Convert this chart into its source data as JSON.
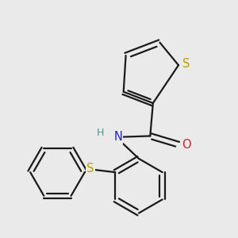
{
  "background_color": "#eaeaea",
  "bond_color": "#1a1a1a",
  "bond_width": 1.6,
  "atom_colors": {
    "S_thiophene": "#b8a000",
    "S_bridge": "#b8a000",
    "N": "#2020cc",
    "O": "#cc2020",
    "H": "#4a9090",
    "C": "#1a1a1a"
  },
  "font_size_atom": 10.5,
  "font_size_H": 9.0
}
